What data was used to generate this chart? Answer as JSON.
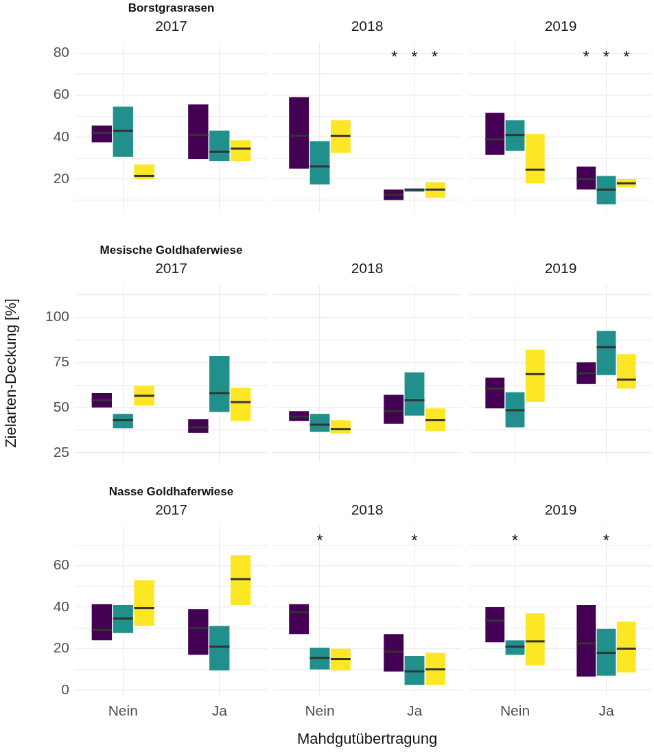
{
  "chart_data": [
    {
      "type": "box",
      "title": "Borstgrasrasen",
      "subtitle": "2017",
      "categories": [
        "Nein",
        "Ja"
      ],
      "ylim": [
        4,
        85
      ],
      "yticks": [
        {
          "value": 10,
          "label": null
        },
        20,
        {
          "value": 30,
          "label": null
        },
        40,
        {
          "value": 50,
          "label": null
        },
        60,
        {
          "value": 70,
          "label": null
        },
        80
      ],
      "grid": true,
      "tick_labels": "y",
      "series": [
        {
          "color": "#440154",
          "boxes": [
            {
              "low": 37.5,
              "q1": 37.5,
              "median": 42,
              "q3": 45.5,
              "high": 45.5
            },
            {
              "low": 29.5,
              "q1": 29.5,
              "median": 41,
              "q3": 55.5,
              "high": 55.5
            }
          ]
        },
        {
          "color": "#21908c",
          "boxes": [
            {
              "low": 30.5,
              "q1": 30.5,
              "median": 43,
              "q3": 54.5,
              "high": 54.5
            },
            {
              "low": 28.5,
              "q1": 28.5,
              "median": 33,
              "q3": 43,
              "high": 43
            }
          ]
        },
        {
          "color": "#fde725",
          "boxes": [
            {
              "low": 20,
              "q1": 20,
              "median": 21.5,
              "q3": 27,
              "high": 27
            },
            {
              "low": 28.5,
              "q1": 28.5,
              "median": 34.5,
              "q3": 38.5,
              "high": 38.5
            }
          ]
        }
      ]
    },
    {
      "type": "box",
      "subtitle": "2018",
      "categories": [
        "Nein",
        "Ja"
      ],
      "ylim": [
        4,
        85
      ],
      "yticks": [
        {
          "value": 10,
          "label": null
        },
        20,
        {
          "value": 30,
          "label": null
        },
        40,
        {
          "value": 50,
          "label": null
        },
        60,
        {
          "value": 70,
          "label": null
        },
        80
      ],
      "grid": true,
      "tick_labels": false,
      "annotations": [
        "*   *   *"
      ],
      "series": [
        {
          "color": "#440154",
          "boxes": [
            {
              "low": 25,
              "q1": 25,
              "median": 40.5,
              "q3": 59,
              "high": 59
            },
            {
              "low": 10,
              "q1": 10,
              "median": 12.5,
              "q3": 15,
              "high": 15
            }
          ]
        },
        {
          "color": "#21908c",
          "boxes": [
            {
              "low": 17.5,
              "q1": 17.5,
              "median": 26,
              "q3": 38,
              "high": 38
            },
            {
              "low": 14,
              "q1": 14,
              "median": 15,
              "q3": 15.5,
              "high": 15.5
            }
          ]
        },
        {
          "color": "#fde725",
          "boxes": [
            {
              "low": 32.5,
              "q1": 32.5,
              "median": 40.5,
              "q3": 48,
              "high": 48
            },
            {
              "low": 11,
              "q1": 11,
              "median": 15,
              "q3": 18.5,
              "high": 18.5
            }
          ]
        }
      ]
    },
    {
      "type": "box",
      "subtitle": "2019",
      "categories": [
        "Nein",
        "Ja"
      ],
      "ylim": [
        4,
        85
      ],
      "yticks": [
        {
          "value": 10,
          "label": null
        },
        20,
        {
          "value": 30,
          "label": null
        },
        40,
        {
          "value": 50,
          "label": null
        },
        60,
        {
          "value": 70,
          "label": null
        },
        80
      ],
      "grid": true,
      "tick_labels": false,
      "annotations": [
        "*   *   *"
      ],
      "series": [
        {
          "color": "#440154",
          "boxes": [
            {
              "low": 31.5,
              "q1": 31.5,
              "median": 39,
              "q3": 51.5,
              "high": 51.5
            },
            {
              "low": 15,
              "q1": 15,
              "median": 20,
              "q3": 26,
              "high": 26
            }
          ]
        },
        {
          "color": "#21908c",
          "boxes": [
            {
              "low": 33.5,
              "q1": 33.5,
              "median": 41,
              "q3": 48,
              "high": 48
            },
            {
              "low": 8,
              "q1": 8,
              "median": 15,
              "q3": 21.5,
              "high": 21.5
            }
          ]
        },
        {
          "color": "#fde725",
          "boxes": [
            {
              "low": 18,
              "q1": 18,
              "median": 24.5,
              "q3": 41.5,
              "high": 41.5
            },
            {
              "low": 16,
              "q1": 16,
              "median": 18,
              "q3": 20,
              "high": 20
            }
          ]
        }
      ]
    },
    {
      "type": "box",
      "title": "Mesische Goldhaferwiese",
      "subtitle": "2017",
      "ylabel": "Zielarten-Deckung [%]",
      "categories": [
        "Nein",
        "Ja"
      ],
      "ylim": [
        20,
        118
      ],
      "yticks": [
        25,
        {
          "value": 37.5,
          "label": null
        },
        50,
        {
          "value": 62.5,
          "label": null
        },
        75,
        {
          "value": 87.5,
          "label": null
        },
        100,
        {
          "value": 112.5,
          "label": null
        }
      ],
      "grid": true,
      "tick_labels": "y",
      "series": [
        {
          "color": "#440154",
          "boxes": [
            {
              "low": 50,
              "q1": 50,
              "median": 54,
              "q3": 58,
              "high": 58
            },
            {
              "low": 36,
              "q1": 36,
              "median": 39,
              "q3": 43.5,
              "high": 43.5
            }
          ]
        },
        {
          "color": "#21908c",
          "boxes": [
            {
              "low": 38.5,
              "q1": 38.5,
              "median": 43,
              "q3": 46.5,
              "high": 46.5
            },
            {
              "low": 47.5,
              "q1": 47.5,
              "median": 58,
              "q3": 78.5,
              "high": 78.5
            }
          ]
        },
        {
          "color": "#fde725",
          "boxes": [
            {
              "low": 51,
              "q1": 51,
              "median": 56.5,
              "q3": 62,
              "high": 62
            },
            {
              "low": 42.5,
              "q1": 42.5,
              "median": 53,
              "q3": 61,
              "high": 61
            }
          ]
        }
      ]
    },
    {
      "type": "box",
      "subtitle": "2018",
      "categories": [
        "Nein",
        "Ja"
      ],
      "ylim": [
        20,
        118
      ],
      "yticks": [
        25,
        {
          "value": 37.5,
          "label": null
        },
        50,
        {
          "value": 62.5,
          "label": null
        },
        75,
        {
          "value": 87.5,
          "label": null
        },
        100,
        {
          "value": 112.5,
          "label": null
        }
      ],
      "grid": true,
      "tick_labels": false,
      "series": [
        {
          "color": "#440154",
          "boxes": [
            {
              "low": 42.5,
              "q1": 42.5,
              "median": 45,
              "q3": 48,
              "high": 48
            },
            {
              "low": 41,
              "q1": 41,
              "median": 48,
              "q3": 57,
              "high": 57
            }
          ]
        },
        {
          "color": "#21908c",
          "boxes": [
            {
              "low": 36.5,
              "q1": 36.5,
              "median": 40.5,
              "q3": 46.5,
              "high": 46.5
            },
            {
              "low": 45.5,
              "q1": 45.5,
              "median": 54,
              "q3": 69.5,
              "high": 69.5
            }
          ]
        },
        {
          "color": "#fde725",
          "boxes": [
            {
              "low": 35.5,
              "q1": 35.5,
              "median": 38,
              "q3": 43,
              "high": 43
            },
            {
              "low": 37,
              "q1": 37,
              "median": 43,
              "q3": 49.5,
              "high": 49.5
            }
          ]
        }
      ]
    },
    {
      "type": "box",
      "subtitle": "2019",
      "categories": [
        "Nein",
        "Ja"
      ],
      "ylim": [
        20,
        118
      ],
      "yticks": [
        25,
        {
          "value": 37.5,
          "label": null
        },
        50,
        {
          "value": 62.5,
          "label": null
        },
        75,
        {
          "value": 87.5,
          "label": null
        },
        100,
        {
          "value": 112.5,
          "label": null
        }
      ],
      "grid": true,
      "tick_labels": false,
      "series": [
        {
          "color": "#440154",
          "boxes": [
            {
              "low": 49.5,
              "q1": 49.5,
              "median": 60.5,
              "q3": 66.5,
              "high": 66.5
            },
            {
              "low": 63,
              "q1": 63,
              "median": 69,
              "q3": 75,
              "high": 75
            }
          ]
        },
        {
          "color": "#21908c",
          "boxes": [
            {
              "low": 39,
              "q1": 39,
              "median": 48.5,
              "q3": 58.5,
              "high": 58.5
            },
            {
              "low": 68,
              "q1": 68,
              "median": 83.5,
              "q3": 92.5,
              "high": 92.5
            }
          ]
        },
        {
          "color": "#fde725",
          "boxes": [
            {
              "low": 53,
              "q1": 53,
              "median": 68.5,
              "q3": 82,
              "high": 82
            },
            {
              "low": 60.5,
              "q1": 60.5,
              "median": 65.5,
              "q3": 79.5,
              "high": 79.5
            }
          ]
        }
      ]
    },
    {
      "type": "box",
      "title": "Nasse Goldhaferwiese",
      "subtitle": "2017",
      "categories": [
        "Nein",
        "Ja"
      ],
      "ylim": [
        -3,
        79
      ],
      "yticks": [
        0,
        {
          "value": 10,
          "label": null
        },
        20,
        {
          "value": 30,
          "label": null
        },
        40,
        {
          "value": 50,
          "label": null
        },
        60,
        {
          "value": 70,
          "label": null
        }
      ],
      "grid": true,
      "series": [
        {
          "color": "#440154",
          "boxes": [
            {
              "low": 24,
              "q1": 24,
              "median": 29,
              "q3": 41.5,
              "high": 41.5
            },
            {
              "low": 17,
              "q1": 17,
              "median": 30,
              "q3": 39,
              "high": 39
            }
          ]
        },
        {
          "color": "#21908c",
          "boxes": [
            {
              "low": 27.5,
              "q1": 27.5,
              "median": 34.5,
              "q3": 41,
              "high": 41
            },
            {
              "low": 9.5,
              "q1": 9.5,
              "median": 21,
              "q3": 31,
              "high": 31
            }
          ]
        },
        {
          "color": "#fde725",
          "boxes": [
            {
              "low": 31,
              "q1": 31,
              "median": 39.5,
              "q3": 53,
              "high": 53
            },
            {
              "low": 41,
              "q1": 41,
              "median": 53.5,
              "q3": 65,
              "high": 65
            }
          ]
        }
      ]
    },
    {
      "type": "box",
      "subtitle": "2018",
      "xlabel": "Mahdgutübertragung",
      "categories": [
        "Nein",
        "Ja"
      ],
      "ylim": [
        -3,
        79
      ],
      "yticks": [
        0,
        {
          "value": 10,
          "label": null
        },
        20,
        {
          "value": 30,
          "label": null
        },
        40,
        {
          "value": 50,
          "label": null
        },
        60,
        {
          "value": 70,
          "label": null
        }
      ],
      "grid": true,
      "tick_labels": "x",
      "annotations": [
        "*",
        "*"
      ],
      "series": [
        {
          "color": "#440154",
          "boxes": [
            {
              "low": 27,
              "q1": 27,
              "median": 37.5,
              "q3": 41.5,
              "high": 41.5
            },
            {
              "low": 9,
              "q1": 9,
              "median": 18.5,
              "q3": 27,
              "high": 27
            }
          ]
        },
        {
          "color": "#21908c",
          "boxes": [
            {
              "low": 10,
              "q1": 10,
              "median": 15.5,
              "q3": 20.5,
              "high": 20.5
            },
            {
              "low": 2.5,
              "q1": 2.5,
              "median": 9,
              "q3": 16.5,
              "high": 16.5
            }
          ]
        },
        {
          "color": "#fde725",
          "boxes": [
            {
              "low": 9.5,
              "q1": 9.5,
              "median": 15,
              "q3": 20,
              "high": 20
            },
            {
              "low": 2.5,
              "q1": 2.5,
              "median": 10,
              "q3": 18,
              "high": 18
            }
          ]
        }
      ]
    },
    {
      "type": "box",
      "subtitle": "2019",
      "categories": [
        "Nein",
        "Ja"
      ],
      "ylim": [
        -3,
        79
      ],
      "yticks": [
        0,
        {
          "value": 10,
          "label": null
        },
        20,
        {
          "value": 30,
          "label": null
        },
        40,
        {
          "value": 50,
          "label": null
        },
        60,
        {
          "value": 70,
          "label": null
        }
      ],
      "grid": true,
      "tick_labels": "x",
      "annotations": [
        "*",
        "*"
      ],
      "series": [
        {
          "color": "#440154",
          "boxes": [
            {
              "low": 23,
              "q1": 23,
              "median": 33.5,
              "q3": 40,
              "high": 40
            },
            {
              "low": 6.5,
              "q1": 6.5,
              "median": 22.5,
              "q3": 41,
              "high": 41
            }
          ]
        },
        {
          "color": "#21908c",
          "boxes": [
            {
              "low": 17,
              "q1": 17,
              "median": 21,
              "q3": 24,
              "high": 24
            },
            {
              "low": 7,
              "q1": 7,
              "median": 18,
              "q3": 29.5,
              "high": 29.5
            }
          ]
        },
        {
          "color": "#fde725",
          "boxes": [
            {
              "low": 12,
              "q1": 12,
              "median": 23.5,
              "q3": 37,
              "high": 37
            },
            {
              "low": 8.5,
              "q1": 8.5,
              "median": 20,
              "q3": 33,
              "high": 33
            }
          ]
        }
      ]
    }
  ]
}
